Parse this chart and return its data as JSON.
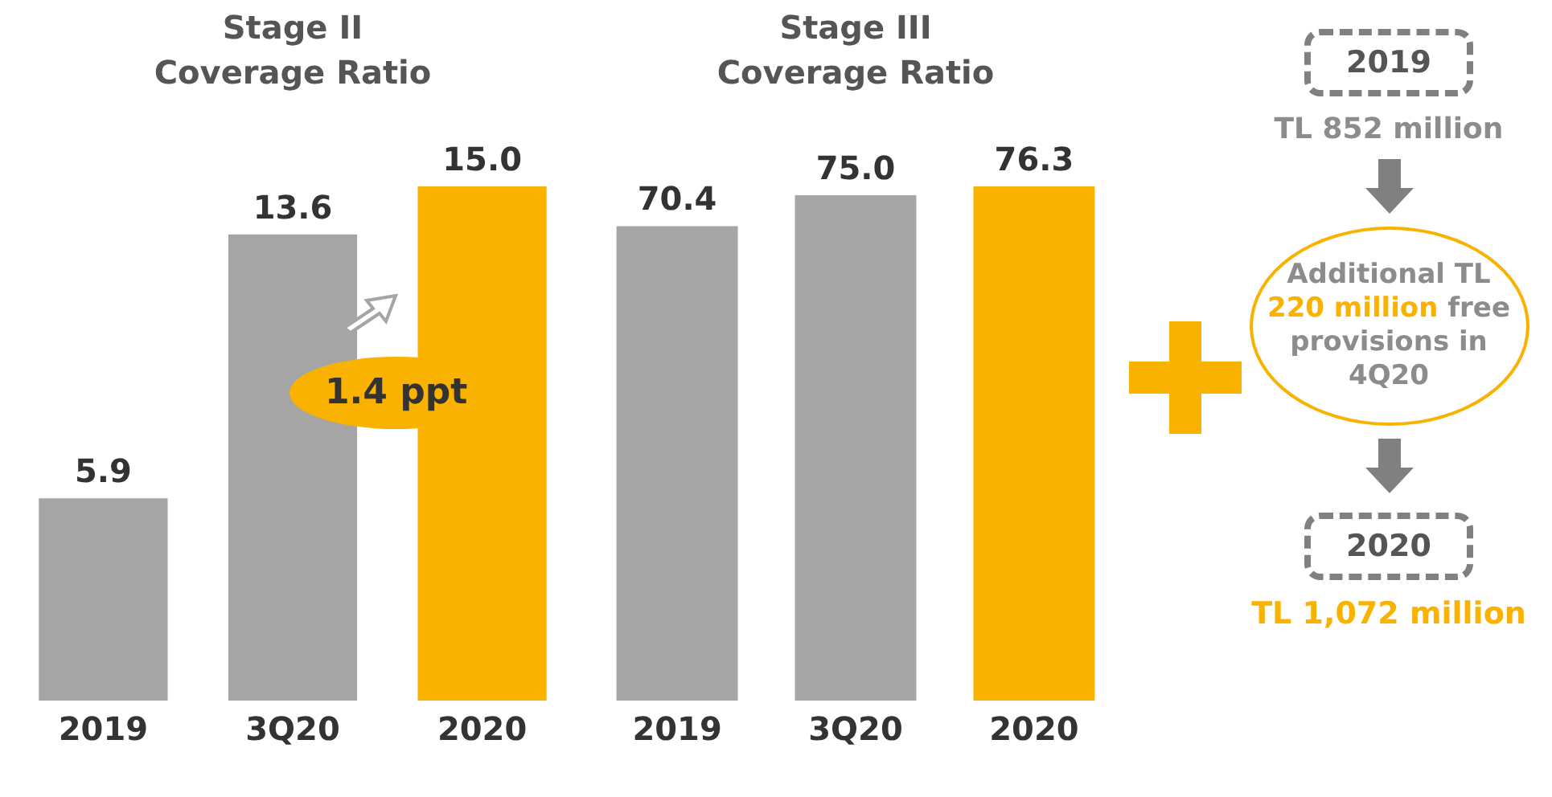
{
  "chart_data": [
    {
      "type": "bar",
      "title": "Stage II\nCoverage Ratio",
      "categories": [
        "2019",
        "3Q20",
        "2020"
      ],
      "values": [
        5.9,
        13.6,
        15.0
      ],
      "colors": [
        "#a5a5a5",
        "#a5a5a5",
        "#fab200"
      ],
      "value_labels": [
        "5.9",
        "13.6",
        "15.0"
      ],
      "tick_labels": "x",
      "annotations": [
        "1.4 ppt"
      ]
    },
    {
      "type": "bar",
      "title": "Stage III\nCoverage Ratio",
      "categories": [
        "2019",
        "3Q20",
        "2020"
      ],
      "values": [
        70.4,
        75.0,
        76.3
      ],
      "colors": [
        "#a5a5a5",
        "#a5a5a5",
        "#fab200"
      ],
      "value_labels": [
        "70.4",
        "75.0",
        "76.3"
      ],
      "tick_labels": "x"
    },
    {
      "type": "other",
      "annotations": [
        "2019",
        "TL 852 million",
        "Additional TL",
        "220 million",
        "free provisions in 4Q20",
        "2020",
        "TL 1,072 million"
      ]
    }
  ]
}
